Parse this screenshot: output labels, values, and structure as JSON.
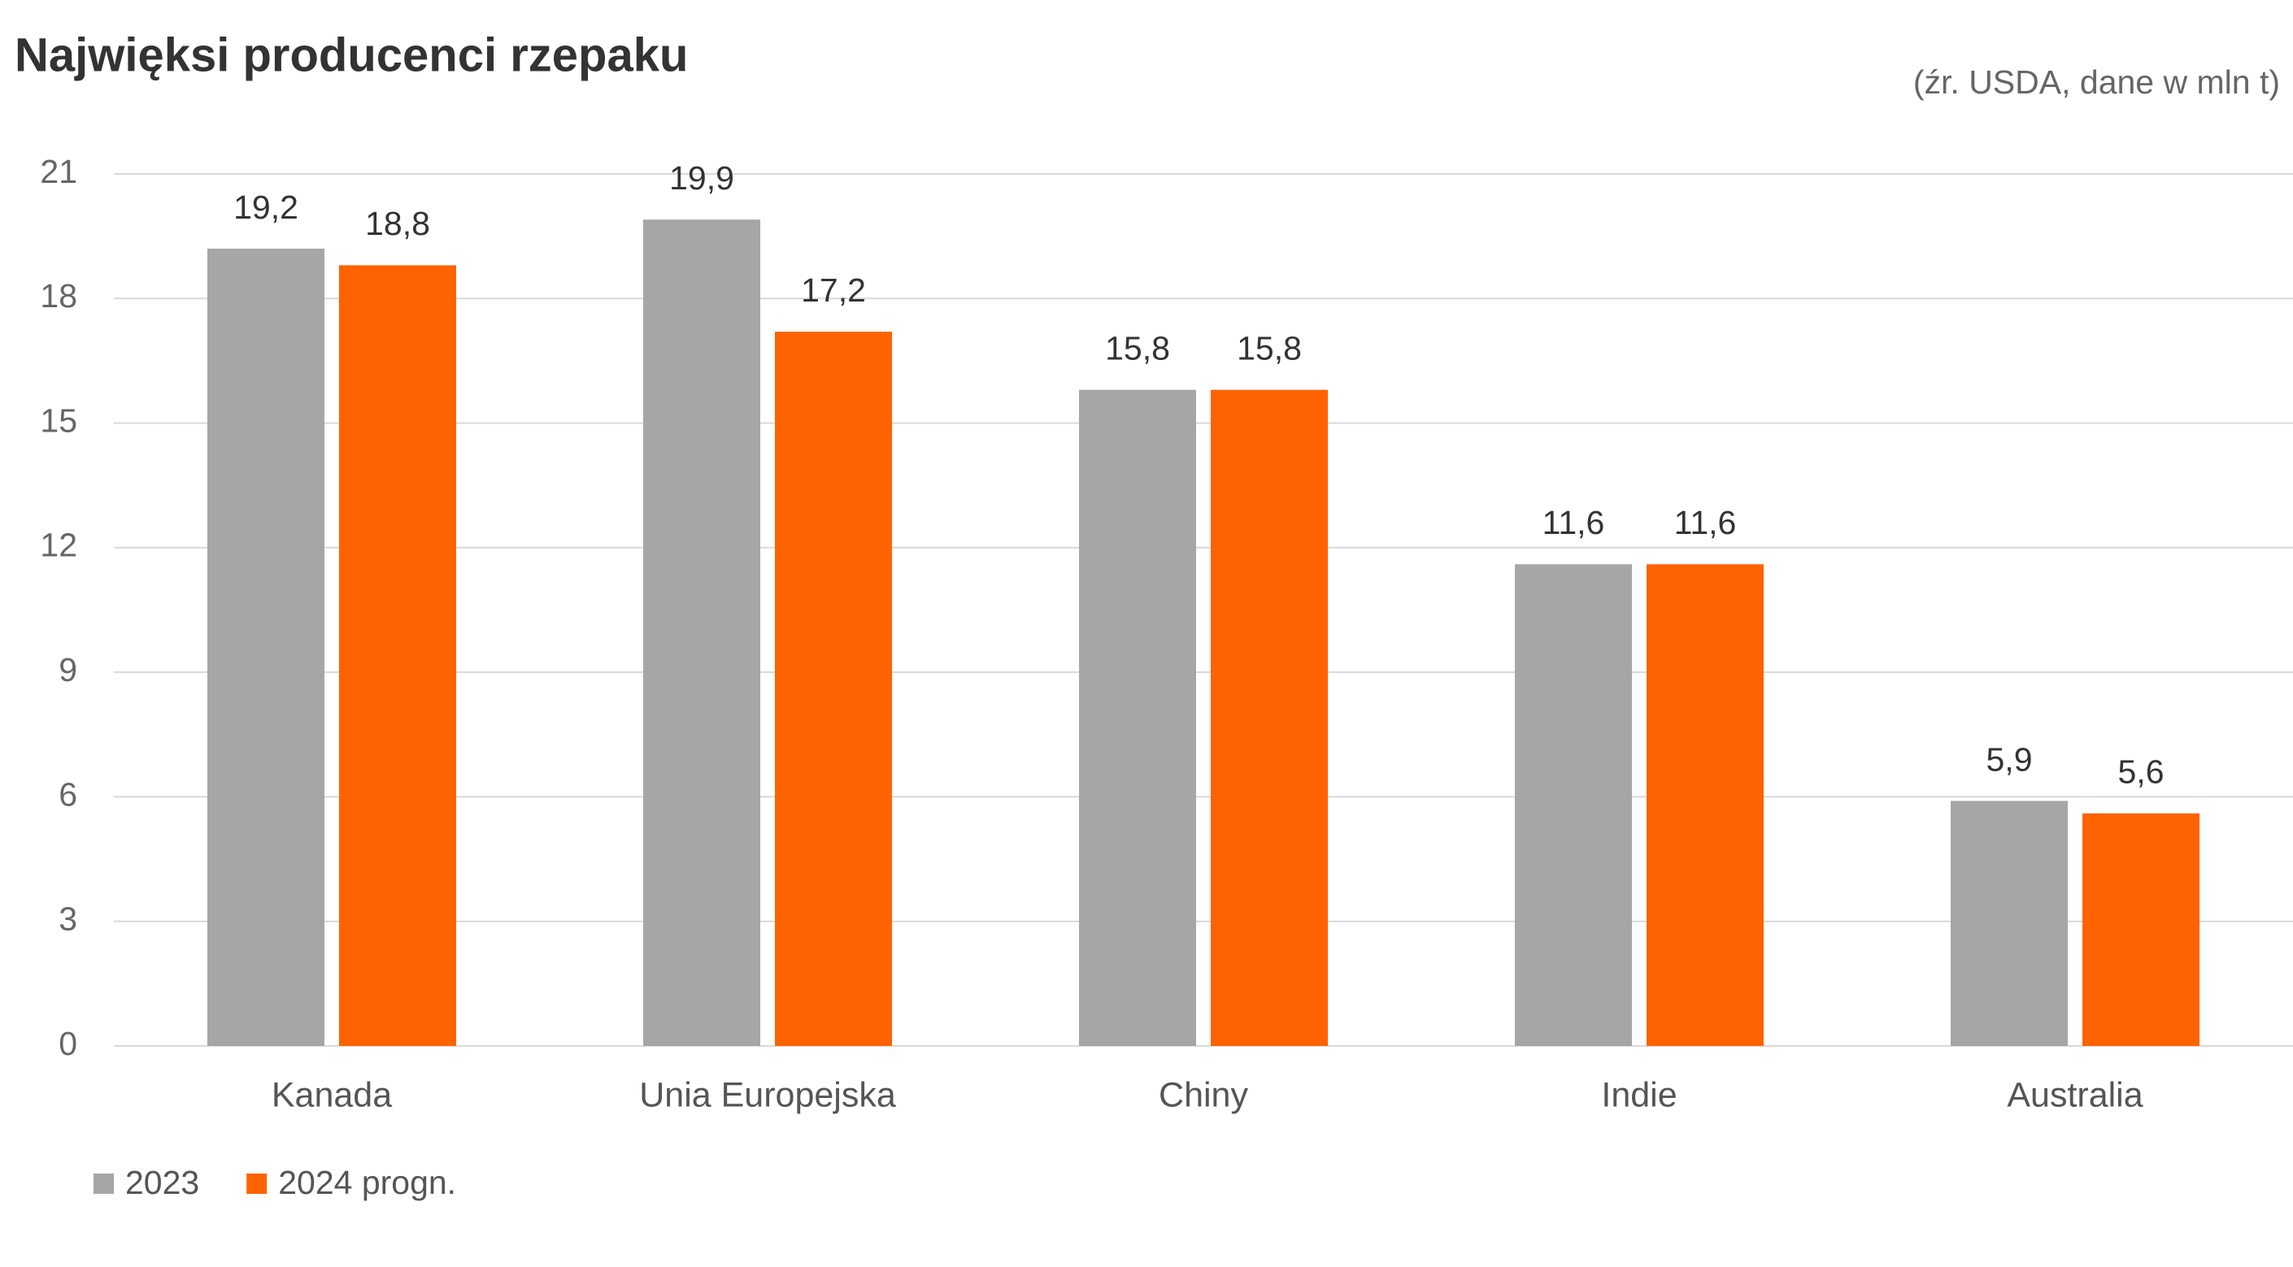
{
  "chart_data": {
    "type": "bar",
    "title": "Najwięksi producenci rzepaku",
    "subtitle": "(źr. USDA, dane w mln t)",
    "categories": [
      "Kanada",
      "Unia Europejska",
      "Chiny",
      "Indie",
      "Australia"
    ],
    "series": [
      {
        "name": "2023",
        "color": "#a6a6a6",
        "values": [
          19.2,
          19.9,
          15.8,
          11.6,
          5.9
        ],
        "value_labels": [
          "19,2",
          "19,9",
          "15,8",
          "11,6",
          "5,9"
        ]
      },
      {
        "name": "2024 progn.",
        "color": "#ff6200",
        "values": [
          18.8,
          17.2,
          15.8,
          11.6,
          5.6
        ],
        "value_labels": [
          "18,8",
          "17,2",
          "15,8",
          "11,6",
          "5,6"
        ]
      }
    ],
    "ylim": [
      0,
      21
    ],
    "yticks": [
      0,
      3,
      6,
      9,
      12,
      15,
      18,
      21
    ],
    "grid": true,
    "legend": "bottom-left"
  }
}
